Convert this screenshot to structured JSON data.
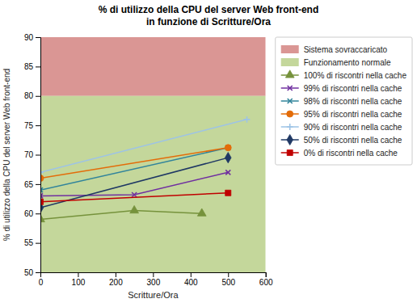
{
  "chart_data": {
    "type": "line",
    "title": "% di utilizzo della CPU del server Web front-end\nin funzione di Scritture/Ora",
    "xlabel": "Scritture/Ora",
    "ylabel": "% di utilizzo della CPU del server Web front-end",
    "xlim": [
      0,
      600
    ],
    "ylim": [
      50,
      90
    ],
    "xticks": [
      0,
      100,
      200,
      300,
      400,
      500,
      600
    ],
    "yticks": [
      50,
      55,
      60,
      65,
      70,
      75,
      80,
      85,
      90
    ],
    "grid": false,
    "legend": "right",
    "zones": [
      {
        "name": "Sistema sovraccaricato",
        "color": "#da9694",
        "ymin": 80,
        "ymax": 90
      },
      {
        "name": "Funzionamento normale",
        "color": "#c4d79b",
        "ymin": 50,
        "ymax": 80
      }
    ],
    "series": [
      {
        "name": "100% di riscontri nella cache",
        "color": "#76923c",
        "marker": "triangle",
        "x": [
          0,
          250,
          430
        ],
        "values": [
          59.0,
          60.5,
          60.0
        ]
      },
      {
        "name": "99% di riscontri nella cache",
        "color": "#7030a0",
        "marker": "x",
        "x": [
          0,
          250,
          500
        ],
        "values": [
          63.0,
          63.2,
          67.0
        ]
      },
      {
        "name": "98% di riscontri nella cache",
        "color": "#31849b",
        "marker": "x",
        "x": [
          0,
          500
        ],
        "values": [
          64.0,
          71.2
        ]
      },
      {
        "name": "95% di riscontri nella cache",
        "color": "#e36c09",
        "marker": "circle",
        "x": [
          0,
          500
        ],
        "values": [
          66.0,
          71.2
        ]
      },
      {
        "name": "90% di riscontri nella cache",
        "color": "#9dc3e6",
        "marker": "plus",
        "x": [
          0,
          550
        ],
        "values": [
          67.0,
          76.0
        ]
      },
      {
        "name": "50% di riscontri nella cache",
        "color": "#1f3864",
        "marker": "diamond",
        "x": [
          0,
          500
        ],
        "values": [
          61.0,
          69.5
        ]
      },
      {
        "name": "0% di riscontri nella cache",
        "color": "#c00000",
        "marker": "square",
        "x": [
          0,
          500
        ],
        "values": [
          62.0,
          63.5
        ]
      }
    ]
  }
}
